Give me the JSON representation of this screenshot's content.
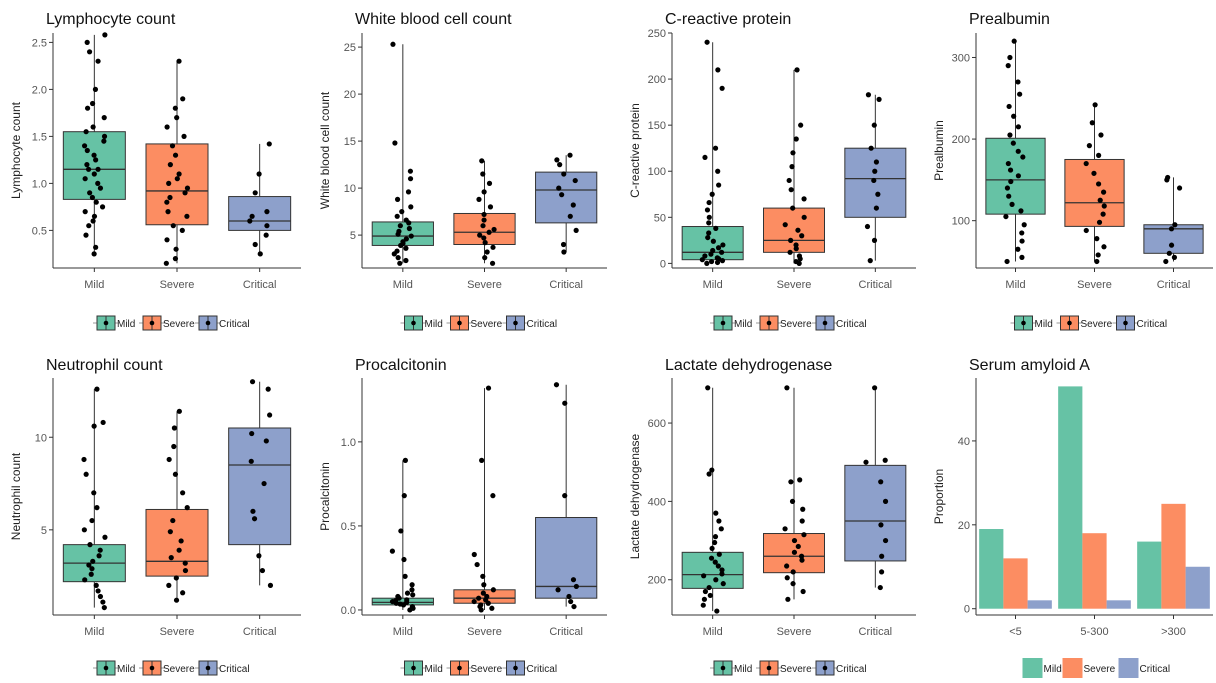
{
  "colors": {
    "Mild": "#66c2a5",
    "Severe": "#fc8d62",
    "Critical": "#8da0cb"
  },
  "legend": [
    "Mild",
    "Severe",
    "Critical"
  ],
  "chart_data": [
    {
      "type": "box",
      "title": "Lymphocyte count",
      "ylabel": "Lymphocyte count",
      "categories": [
        "Mild",
        "Severe",
        "Critical"
      ],
      "ylim": [
        0.1,
        2.6
      ],
      "yticks": [
        0.5,
        1.0,
        1.5,
        2.0,
        2.5
      ],
      "boxes": [
        {
          "name": "Mild",
          "q1": 0.83,
          "median": 1.15,
          "q3": 1.55,
          "min": 0.25,
          "max": 2.58,
          "points": [
            0.25,
            0.32,
            0.45,
            0.55,
            0.6,
            0.65,
            0.7,
            0.75,
            0.8,
            0.85,
            0.9,
            0.95,
            1.0,
            1.05,
            1.1,
            1.15,
            1.15,
            1.2,
            1.25,
            1.3,
            1.35,
            1.4,
            1.45,
            1.5,
            1.55,
            1.6,
            1.7,
            1.8,
            1.85,
            2.0,
            2.3,
            2.4,
            2.5,
            2.58
          ]
        },
        {
          "name": "Severe",
          "q1": 0.56,
          "median": 0.92,
          "q3": 1.42,
          "min": 0.15,
          "max": 2.3,
          "points": [
            0.15,
            0.2,
            0.3,
            0.4,
            0.5,
            0.55,
            0.65,
            0.7,
            0.8,
            0.85,
            0.9,
            0.95,
            1.0,
            1.05,
            1.1,
            1.2,
            1.3,
            1.4,
            1.5,
            1.6,
            1.7,
            1.8,
            1.9,
            2.3
          ]
        },
        {
          "name": "Critical",
          "q1": 0.5,
          "median": 0.6,
          "q3": 0.86,
          "min": 0.25,
          "max": 1.42,
          "points": [
            0.25,
            0.35,
            0.45,
            0.55,
            0.6,
            0.65,
            0.7,
            0.9,
            1.1,
            1.42
          ]
        }
      ]
    },
    {
      "type": "box",
      "title": "White blood cell count",
      "ylabel": "White blood cell count",
      "categories": [
        "Mild",
        "Severe",
        "Critical"
      ],
      "ylim": [
        1.5,
        26.5
      ],
      "yticks": [
        5,
        10,
        15,
        20,
        25
      ],
      "boxes": [
        {
          "name": "Mild",
          "q1": 3.9,
          "median": 4.9,
          "q3": 6.4,
          "min": 2.0,
          "max": 25.3,
          "points": [
            2.0,
            2.3,
            2.6,
            3.0,
            3.3,
            3.6,
            3.9,
            4.1,
            4.3,
            4.6,
            4.9,
            5.1,
            5.4,
            5.7,
            6.0,
            6.3,
            6.6,
            7.0,
            7.5,
            8.0,
            8.8,
            9.6,
            11.0,
            11.8,
            14.8,
            25.3
          ]
        },
        {
          "name": "Severe",
          "q1": 4.0,
          "median": 5.3,
          "q3": 7.3,
          "min": 2.0,
          "max": 12.9,
          "points": [
            2.0,
            2.6,
            3.2,
            3.7,
            4.2,
            4.7,
            5.0,
            5.3,
            5.6,
            6.0,
            6.6,
            7.2,
            8.0,
            8.8,
            9.6,
            10.5,
            11.5,
            12.9
          ]
        },
        {
          "name": "Critical",
          "q1": 6.3,
          "median": 9.8,
          "q3": 11.7,
          "min": 3.2,
          "max": 13.5,
          "points": [
            3.2,
            4.0,
            5.5,
            7.0,
            8.2,
            9.3,
            10.0,
            10.8,
            11.5,
            12.5,
            13.0,
            13.5
          ]
        }
      ]
    },
    {
      "type": "box",
      "title": "C-reactive protein",
      "ylabel": "C-reactive protein",
      "categories": [
        "Mild",
        "Severe",
        "Critical"
      ],
      "ylim": [
        -5,
        250
      ],
      "yticks": [
        0,
        50,
        100,
        150,
        200,
        250
      ],
      "boxes": [
        {
          "name": "Mild",
          "q1": 4,
          "median": 12,
          "q3": 40,
          "min": 0,
          "max": 240,
          "points": [
            0,
            1,
            2,
            3,
            4,
            5,
            6,
            8,
            10,
            12,
            14,
            17,
            20,
            24,
            28,
            33,
            38,
            44,
            50,
            58,
            66,
            75,
            85,
            100,
            115,
            125,
            190,
            210,
            240
          ]
        },
        {
          "name": "Severe",
          "q1": 12,
          "median": 25,
          "q3": 60,
          "min": 0,
          "max": 210,
          "points": [
            0,
            2,
            5,
            8,
            12,
            16,
            20,
            25,
            30,
            36,
            42,
            50,
            60,
            70,
            80,
            90,
            105,
            120,
            135,
            150,
            210
          ]
        },
        {
          "name": "Critical",
          "q1": 50,
          "median": 92,
          "q3": 125,
          "min": 3,
          "max": 183,
          "points": [
            3,
            25,
            40,
            60,
            75,
            90,
            100,
            110,
            125,
            150,
            178,
            183
          ]
        }
      ]
    },
    {
      "type": "box",
      "title": "Prealbumin",
      "ylabel": "Prealbumin",
      "categories": [
        "Mild",
        "Severe",
        "Critical"
      ],
      "ylim": [
        42,
        330
      ],
      "yticks": [
        100,
        200,
        300
      ],
      "boxes": [
        {
          "name": "Mild",
          "q1": 108,
          "median": 150,
          "q3": 201,
          "min": 50,
          "max": 320,
          "points": [
            50,
            55,
            65,
            75,
            85,
            95,
            105,
            112,
            120,
            130,
            140,
            148,
            155,
            162,
            170,
            178,
            185,
            195,
            205,
            215,
            228,
            240,
            255,
            270,
            290,
            300,
            320
          ]
        },
        {
          "name": "Severe",
          "q1": 93,
          "median": 122,
          "q3": 175,
          "min": 50,
          "max": 242,
          "points": [
            50,
            58,
            68,
            78,
            88,
            98,
            108,
            118,
            125,
            135,
            145,
            158,
            170,
            180,
            192,
            205,
            220,
            242
          ]
        },
        {
          "name": "Critical",
          "q1": 60,
          "median": 90,
          "q3": 95,
          "min": 50,
          "max": 153,
          "points": [
            50,
            55,
            60,
            70,
            90,
            95,
            140,
            150,
            153
          ]
        }
      ]
    },
    {
      "type": "box",
      "title": "Neutrophil count",
      "ylabel": "Neutrophil count",
      "categories": [
        "Mild",
        "Severe",
        "Critical"
      ],
      "ylim": [
        0.4,
        13.2
      ],
      "yticks": [
        5,
        10
      ],
      "boxes": [
        {
          "name": "Mild",
          "q1": 2.2,
          "median": 3.2,
          "q3": 4.2,
          "min": 0.8,
          "max": 12.6,
          "points": [
            0.8,
            1.1,
            1.4,
            1.7,
            2.0,
            2.3,
            2.6,
            2.9,
            3.1,
            3.3,
            3.6,
            3.9,
            4.2,
            4.6,
            5.0,
            5.5,
            6.2,
            7.0,
            8.0,
            8.8,
            10.6,
            10.8,
            12.6
          ]
        },
        {
          "name": "Severe",
          "q1": 2.5,
          "median": 3.3,
          "q3": 6.1,
          "min": 1.2,
          "max": 11.4,
          "points": [
            1.2,
            1.6,
            2.0,
            2.4,
            2.8,
            3.2,
            3.5,
            3.9,
            4.4,
            4.9,
            5.5,
            6.2,
            7.0,
            8.0,
            8.8,
            9.5,
            10.5,
            11.4
          ]
        },
        {
          "name": "Critical",
          "q1": 4.2,
          "median": 8.5,
          "q3": 10.5,
          "min": 2.0,
          "max": 13.0,
          "points": [
            2.0,
            2.8,
            3.6,
            5.6,
            6.0,
            7.5,
            8.7,
            9.8,
            10.2,
            11.2,
            12.6,
            13.0
          ]
        }
      ]
    },
    {
      "type": "box",
      "title": "Procalcitonin",
      "ylabel": "Procalcitonin",
      "categories": [
        "Mild",
        "Severe",
        "Critical"
      ],
      "ylim": [
        -0.03,
        1.38
      ],
      "yticks": [
        0.0,
        0.5,
        1.0
      ],
      "boxes": [
        {
          "name": "Mild",
          "q1": 0.03,
          "median": 0.045,
          "q3": 0.07,
          "min": 0.0,
          "max": 0.89,
          "points": [
            0.0,
            0.01,
            0.02,
            0.03,
            0.035,
            0.04,
            0.045,
            0.05,
            0.055,
            0.06,
            0.07,
            0.08,
            0.09,
            0.1,
            0.12,
            0.15,
            0.2,
            0.3,
            0.35,
            0.47,
            0.68,
            0.89
          ]
        },
        {
          "name": "Severe",
          "q1": 0.04,
          "median": 0.07,
          "q3": 0.12,
          "min": 0.0,
          "max": 1.32,
          "points": [
            0.0,
            0.01,
            0.02,
            0.03,
            0.04,
            0.05,
            0.06,
            0.07,
            0.08,
            0.1,
            0.12,
            0.15,
            0.2,
            0.27,
            0.33,
            0.68,
            0.89,
            1.32
          ]
        },
        {
          "name": "Critical",
          "q1": 0.07,
          "median": 0.14,
          "q3": 0.55,
          "min": 0.02,
          "max": 1.34,
          "points": [
            0.02,
            0.05,
            0.08,
            0.12,
            0.14,
            0.18,
            0.68,
            1.23,
            1.34
          ]
        }
      ]
    },
    {
      "type": "box",
      "title": "Lactate dehydrogenase",
      "ylabel": "Lactate dehydrogenase",
      "categories": [
        "Mild",
        "Severe",
        "Critical"
      ],
      "ylim": [
        110,
        715
      ],
      "yticks": [
        200,
        400,
        600
      ],
      "boxes": [
        {
          "name": "Mild",
          "q1": 178,
          "median": 213,
          "q3": 270,
          "min": 120,
          "max": 690,
          "points": [
            120,
            135,
            150,
            160,
            170,
            180,
            190,
            200,
            210,
            215,
            225,
            235,
            245,
            255,
            265,
            280,
            295,
            310,
            330,
            350,
            370,
            470,
            480,
            690
          ]
        },
        {
          "name": "Severe",
          "q1": 218,
          "median": 260,
          "q3": 318,
          "min": 150,
          "max": 690,
          "points": [
            150,
            170,
            190,
            205,
            220,
            235,
            250,
            260,
            270,
            285,
            300,
            315,
            330,
            350,
            380,
            400,
            450,
            455,
            690
          ]
        },
        {
          "name": "Critical",
          "q1": 248,
          "median": 350,
          "q3": 492,
          "min": 180,
          "max": 690,
          "points": [
            180,
            220,
            260,
            300,
            340,
            400,
            450,
            500,
            505,
            690
          ]
        }
      ]
    },
    {
      "type": "bar",
      "title": "Serum amyloid A",
      "ylabel": "Proportion",
      "categories": [
        "<5",
        "5-300",
        ">300"
      ],
      "ylim": [
        -1.5,
        55
      ],
      "yticks": [
        0,
        20,
        40
      ],
      "series": [
        {
          "name": "Mild",
          "values": [
            19,
            53,
            16
          ]
        },
        {
          "name": "Severe",
          "values": [
            12,
            18,
            25
          ]
        },
        {
          "name": "Critical",
          "values": [
            2,
            2,
            10
          ]
        }
      ]
    }
  ]
}
